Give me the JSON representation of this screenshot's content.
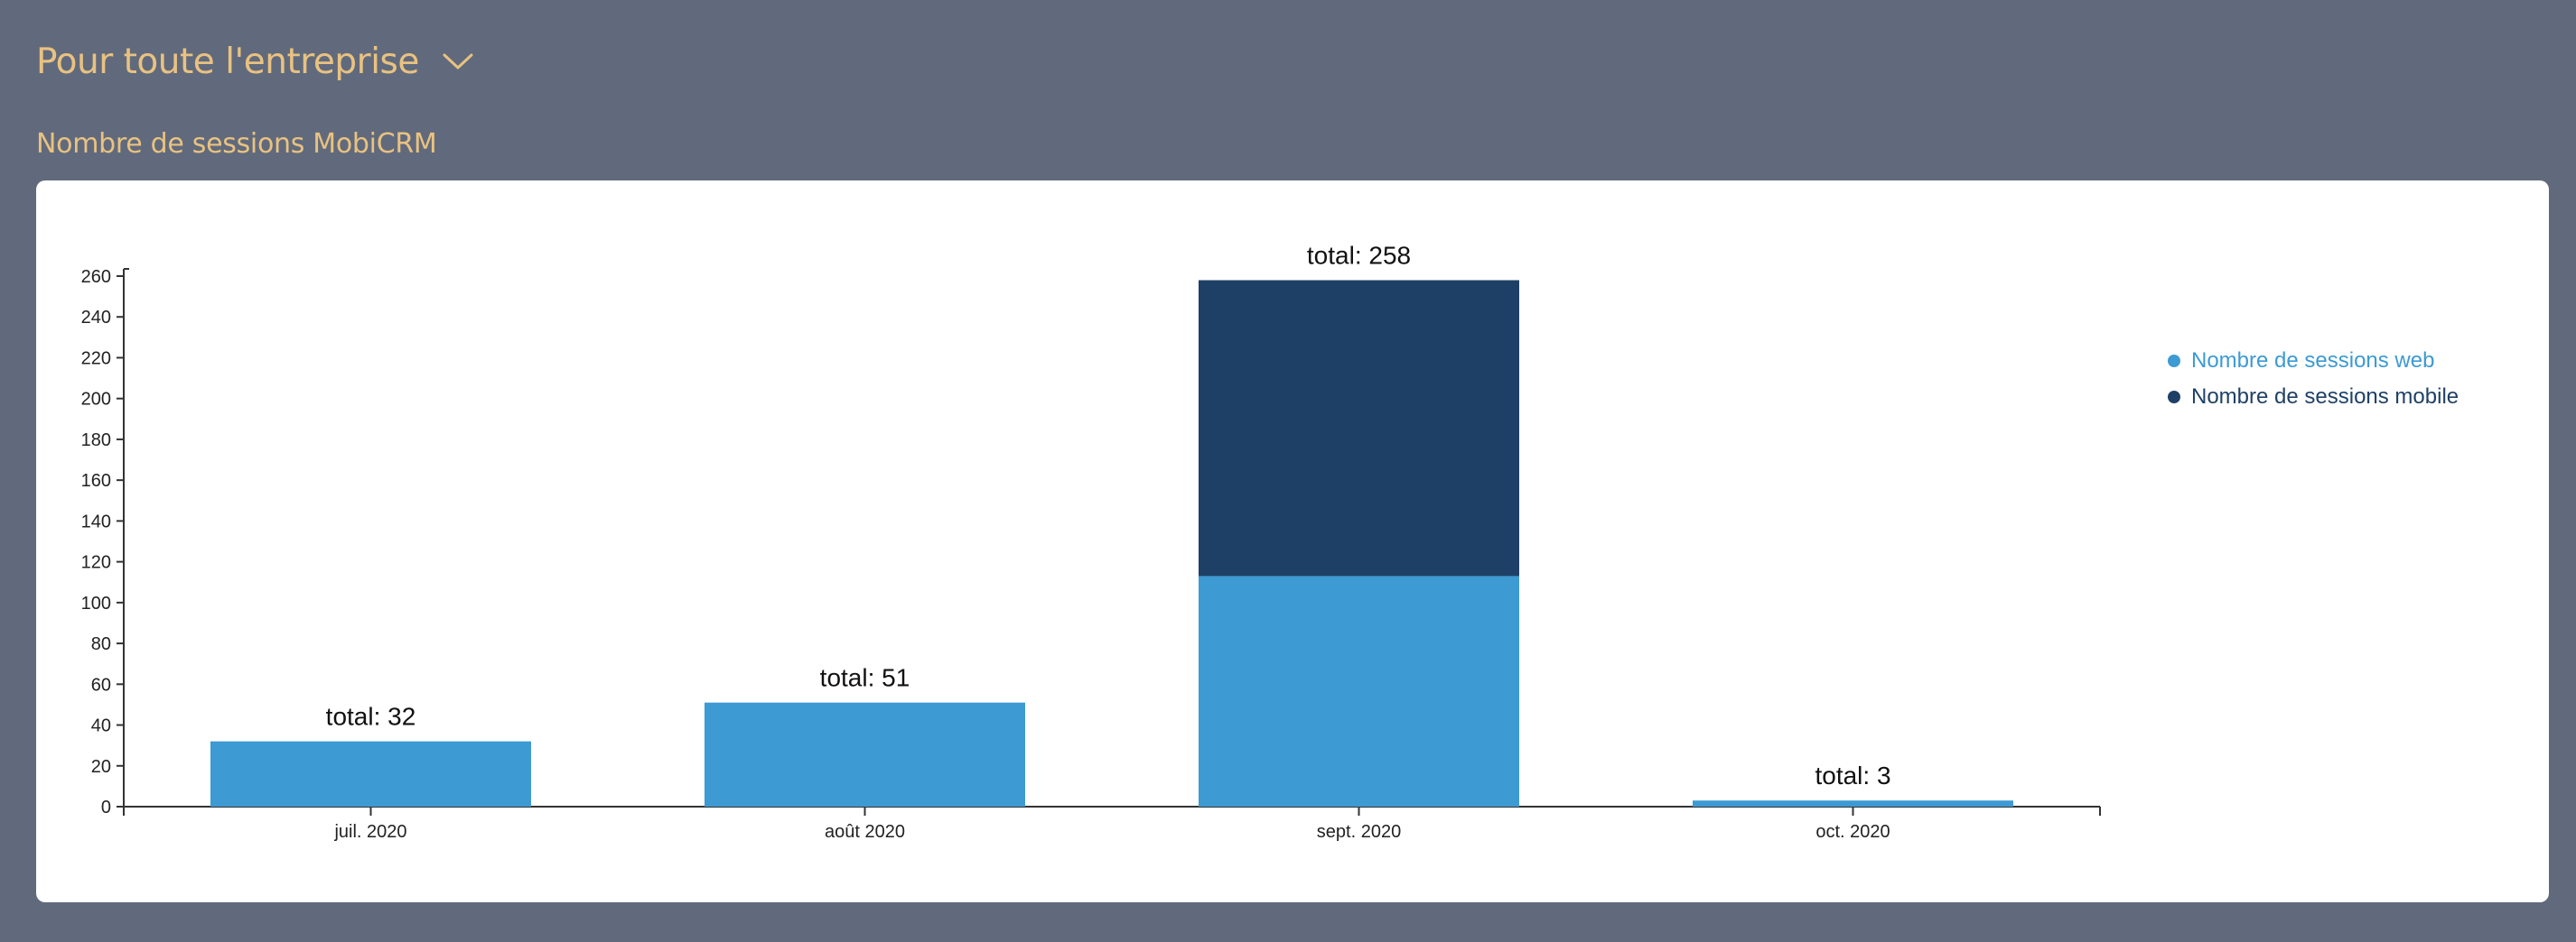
{
  "header": {
    "scope_label": "Pour toute l'entreprise",
    "section_title": "Nombre de sessions MobiCRM"
  },
  "colors": {
    "background": "#616a7c",
    "accent": "#e9c281",
    "web": "#3d9ad3",
    "mobile": "#1f4066"
  },
  "chart_data": {
    "type": "bar",
    "stacked": true,
    "categories": [
      "juil. 2020",
      "août 2020",
      "sept. 2020",
      "oct. 2020"
    ],
    "series": [
      {
        "name": "Nombre de sessions web",
        "values": [
          32,
          51,
          113,
          3
        ]
      },
      {
        "name": "Nombre de sessions mobile",
        "values": [
          0,
          0,
          145,
          0
        ]
      }
    ],
    "totals": [
      "total: 32",
      "total: 51",
      "total: 258",
      "total: 3"
    ],
    "yticks": [
      0,
      20,
      40,
      60,
      80,
      100,
      120,
      140,
      160,
      180,
      200,
      220,
      240,
      260
    ],
    "ylim": [
      0,
      262
    ],
    "legend_position": "right",
    "grid": false
  }
}
